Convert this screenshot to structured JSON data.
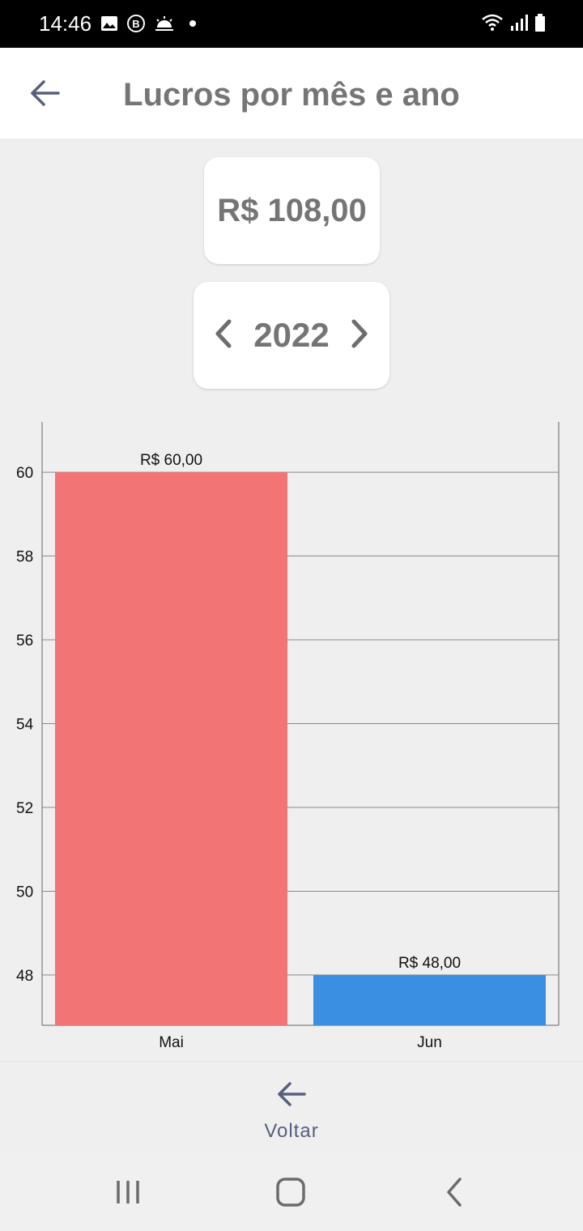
{
  "status_bar": {
    "time": "14:46",
    "left_icons": [
      "image-icon",
      "b-badge-icon",
      "weather-icon",
      "dot-icon"
    ],
    "right_icons": [
      "wifi-icon",
      "signal-icon",
      "battery-icon"
    ]
  },
  "app_bar": {
    "title": "Lucros por mês e ano",
    "back_icon": "arrow-left-icon"
  },
  "summary": {
    "total": "R$ 108,00",
    "year": "2022",
    "prev_icon": "chevron-left-icon",
    "next_icon": "chevron-right-icon"
  },
  "chart_data": {
    "type": "bar",
    "categories": [
      "Mai",
      "Jun"
    ],
    "values": [
      60,
      48
    ],
    "value_labels": [
      "R$ 60,00",
      "R$ 48,00"
    ],
    "colors": [
      "#f27474",
      "#3a8fe2"
    ],
    "ylim": [
      46.8,
      61.2
    ],
    "yticks": [
      48,
      50,
      52,
      54,
      56,
      58,
      60
    ],
    "grid": true,
    "title": "",
    "xlabel": "",
    "ylabel": ""
  },
  "bottom_nav": {
    "back_label": "Voltar",
    "back_icon": "arrow-left-icon"
  },
  "system_nav": {
    "icons": [
      "recent-apps-icon",
      "home-icon",
      "back-icon"
    ]
  },
  "colors": {
    "accent": "#56607e",
    "title_gray": "#757575",
    "background": "#efefef"
  }
}
